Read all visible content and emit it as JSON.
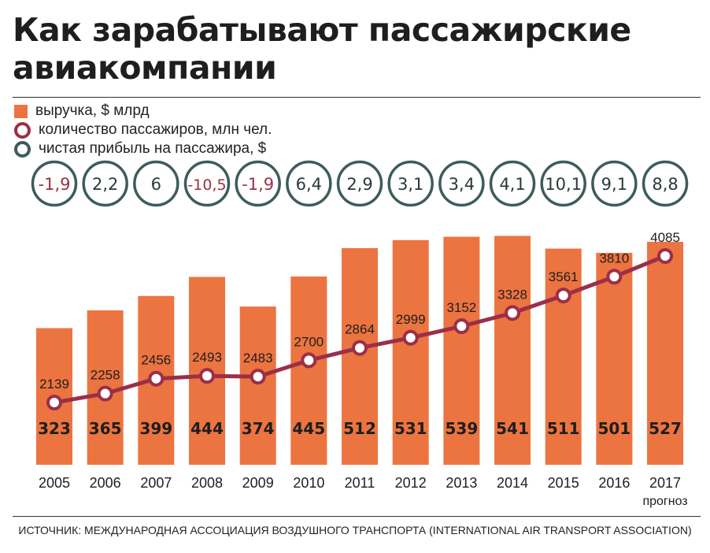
{
  "title_line1": "Как зарабатывают пассажирские",
  "title_line2": "авиакомпании",
  "legend": [
    {
      "label": "выручка, $ млрд",
      "color": "#ec7440",
      "shape": "square"
    },
    {
      "label": "количество пассажиров, млн чел.",
      "color": "#9b2f49",
      "shape": "circle"
    },
    {
      "label": "чистая прибыль на пассажира, $",
      "color": "#3d5c5c",
      "shape": "circle"
    }
  ],
  "source": "ИСТОЧНИК: МЕЖДУНАРОДНАЯ АССОЦИАЦИЯ ВОЗДУШНОГО ТРАНСПОРТА (INTERNATIONAL AIR TRANSPORT ASSOCIATION)",
  "chart_data": {
    "type": "bar",
    "categories": [
      "2005",
      "2006",
      "2007",
      "2008",
      "2009",
      "2010",
      "2011",
      "2012",
      "2013",
      "2014",
      "2015",
      "2016",
      "2017"
    ],
    "category_note": {
      "index": 12,
      "text": "прогноз"
    },
    "series": [
      {
        "name": "выручка, $ млрд",
        "type": "bar",
        "values": [
          323,
          365,
          399,
          444,
          374,
          445,
          512,
          531,
          539,
          541,
          511,
          501,
          527
        ],
        "labels": [
          "323",
          "365",
          "399",
          "444",
          "374",
          "445",
          "512",
          "531",
          "539",
          "541",
          "511",
          "501",
          "527"
        ],
        "color": "#ec7440"
      },
      {
        "name": "количество пассажиров, млн чел.",
        "type": "line",
        "values": [
          2139,
          2258,
          2456,
          2493,
          2483,
          2700,
          2864,
          2999,
          3152,
          3328,
          3561,
          3810,
          4085
        ],
        "labels": [
          "2139",
          "2258",
          "2456",
          "2493",
          "2483",
          "2700",
          "2864",
          "2999",
          "3152",
          "3328",
          "3561",
          "3810",
          "4085"
        ],
        "color": "#9b2f49"
      },
      {
        "name": "чистая прибыль на пассажира, $",
        "type": "circles",
        "values": [
          -1.9,
          2.2,
          6,
          -10.5,
          -1.9,
          6.4,
          2.9,
          3.1,
          3.4,
          4.1,
          10.1,
          9.1,
          8.8
        ],
        "labels": [
          "-1,9",
          "2,2",
          "6",
          "-10,5",
          "-1,9",
          "6,4",
          "2,9",
          "3,1",
          "3,4",
          "4,1",
          "10,1",
          "9,1",
          "8,8"
        ],
        "color": "#3d5c5c",
        "negative_color": "#9b2f49"
      }
    ],
    "grid": false,
    "legend_position": "top-left"
  }
}
